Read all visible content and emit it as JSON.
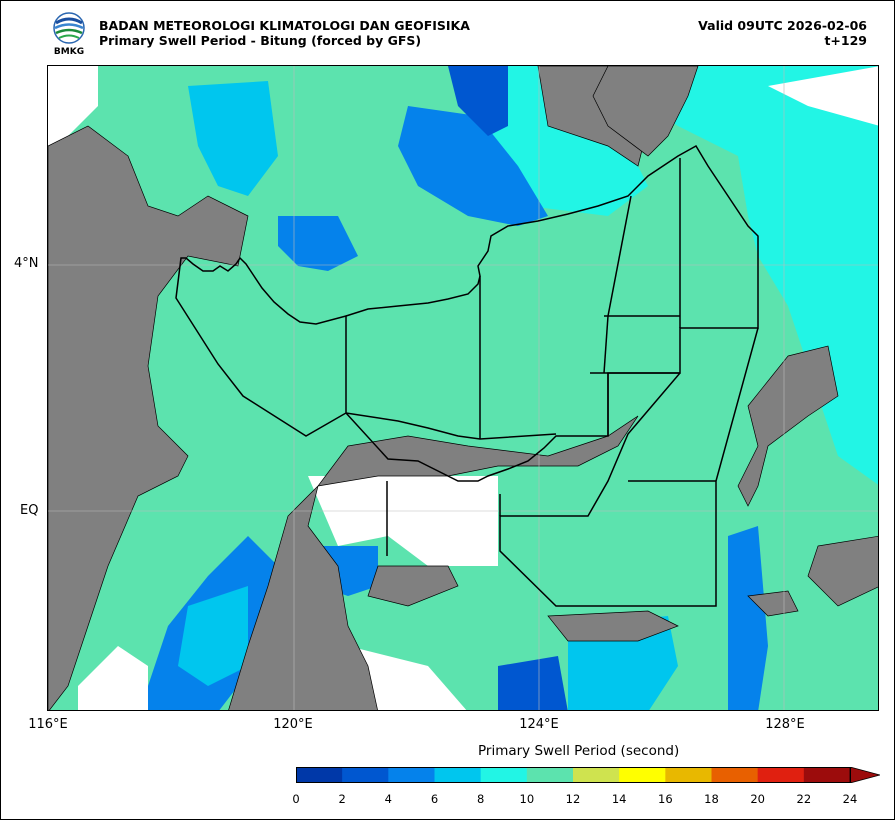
{
  "header": {
    "agency": "BADAN METEOROLOGI KLIMATOLOGI DAN GEOFISIKA",
    "subtitle": "Primary Swell Period - Bitung (forced by GFS)",
    "valid": "Valid 09UTC 2026-02-06",
    "lead": "t+129",
    "logo_text": "BMKG"
  },
  "map": {
    "lon_ticks": [
      "116°E",
      "120°E",
      "124°E",
      "128°E"
    ],
    "lat_ticks": [
      "4°N",
      "EQ"
    ],
    "colors": {
      "land": "#808080",
      "sea_default": "#5ce3ae",
      "open_ocean": "#22f5e5",
      "deep_blue": "#0057d0",
      "mid_blue": "#0582eb",
      "light_blue": "#00c6ee",
      "no_data": "#ffffff"
    }
  },
  "colorbar": {
    "title": "Primary Swell Period (second)",
    "ticks": [
      "0",
      "2",
      "4",
      "6",
      "8",
      "10",
      "12",
      "14",
      "16",
      "18",
      "20",
      "22",
      "24"
    ],
    "colors": [
      "#0038a8",
      "#0057d0",
      "#0582eb",
      "#00c6ee",
      "#22f5e5",
      "#5ce3ae",
      "#cfe34f",
      "#ffff00",
      "#e8b800",
      "#e86000",
      "#e02010",
      "#9c0c0c"
    ],
    "extend_color": "#9c0c0c"
  }
}
